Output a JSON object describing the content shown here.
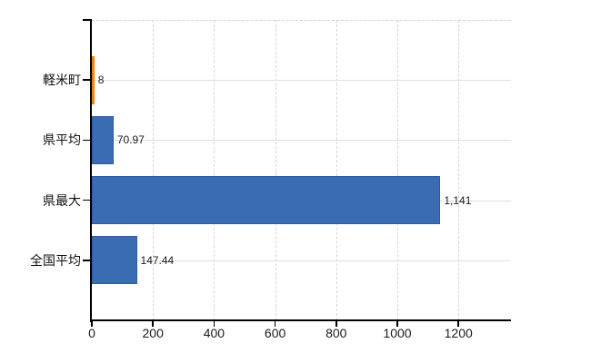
{
  "chart_data": {
    "type": "bar",
    "orientation": "horizontal",
    "title": "",
    "xlabel": "",
    "ylabel": "",
    "categories": [
      "軽米町",
      "県平均",
      "県最大",
      "全国平均"
    ],
    "values": [
      8,
      70.97,
      1141,
      147.44
    ],
    "value_labels": [
      "8",
      "70.97",
      "1,141",
      "147.44"
    ],
    "bar_fill_colors": [
      "#f6951e",
      "#3a6cb2",
      "#3a6cb2",
      "#3a6cb2"
    ],
    "bar_border_colors": [
      "#dd7a0e",
      "#2d5c9e",
      "#2d5c9e",
      "#2d5c9e"
    ],
    "x_ticks": [
      0,
      200,
      400,
      600,
      800,
      1000,
      1200
    ],
    "x_tick_labels": [
      "0",
      "200",
      "400",
      "600",
      "800",
      "1000",
      "1200"
    ],
    "xlim": [
      0,
      1372
    ],
    "grid": true,
    "legend": false,
    "axis_color": "#000000",
    "vertical_grid_color": "#d2d7d2",
    "horizontal_grid_color": "#dde1dd",
    "text_color": "#1b1b1b",
    "background_color": "#ffffff"
  }
}
